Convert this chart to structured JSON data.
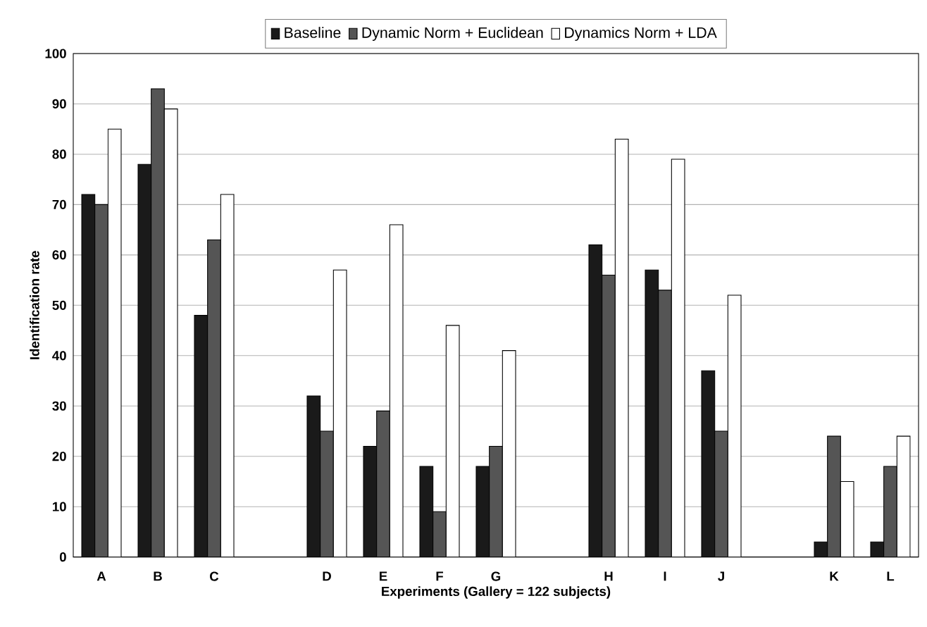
{
  "chart_data": {
    "type": "bar",
    "xlabel": "Experiments (Gallery = 122 subjects)",
    "ylabel": "Identification rate",
    "categories": [
      "A",
      "B",
      "C",
      null,
      "D",
      "E",
      "F",
      "G",
      null,
      "H",
      "I",
      "J",
      null,
      "K",
      "L"
    ],
    "series": [
      {
        "name": "Baseline",
        "color": "#1a1a1a",
        "values": [
          72,
          78,
          48,
          null,
          32,
          22,
          18,
          18,
          null,
          62,
          57,
          37,
          null,
          3,
          3
        ]
      },
      {
        "name": "Dynamic Norm + Euclidean",
        "color": "#555555",
        "values": [
          70,
          93,
          63,
          null,
          25,
          29,
          9,
          22,
          null,
          56,
          53,
          25,
          null,
          24,
          18
        ]
      },
      {
        "name": "Dynamics Norm + LDA",
        "color": "#ffffff",
        "values": [
          85,
          89,
          72,
          null,
          57,
          66,
          46,
          41,
          null,
          83,
          79,
          52,
          null,
          15,
          24
        ]
      }
    ],
    "ylim": [
      0,
      100
    ],
    "yticks": [
      0,
      10,
      20,
      30,
      40,
      50,
      60,
      70,
      80,
      90,
      100
    ],
    "grid": "y",
    "legend": "top"
  }
}
